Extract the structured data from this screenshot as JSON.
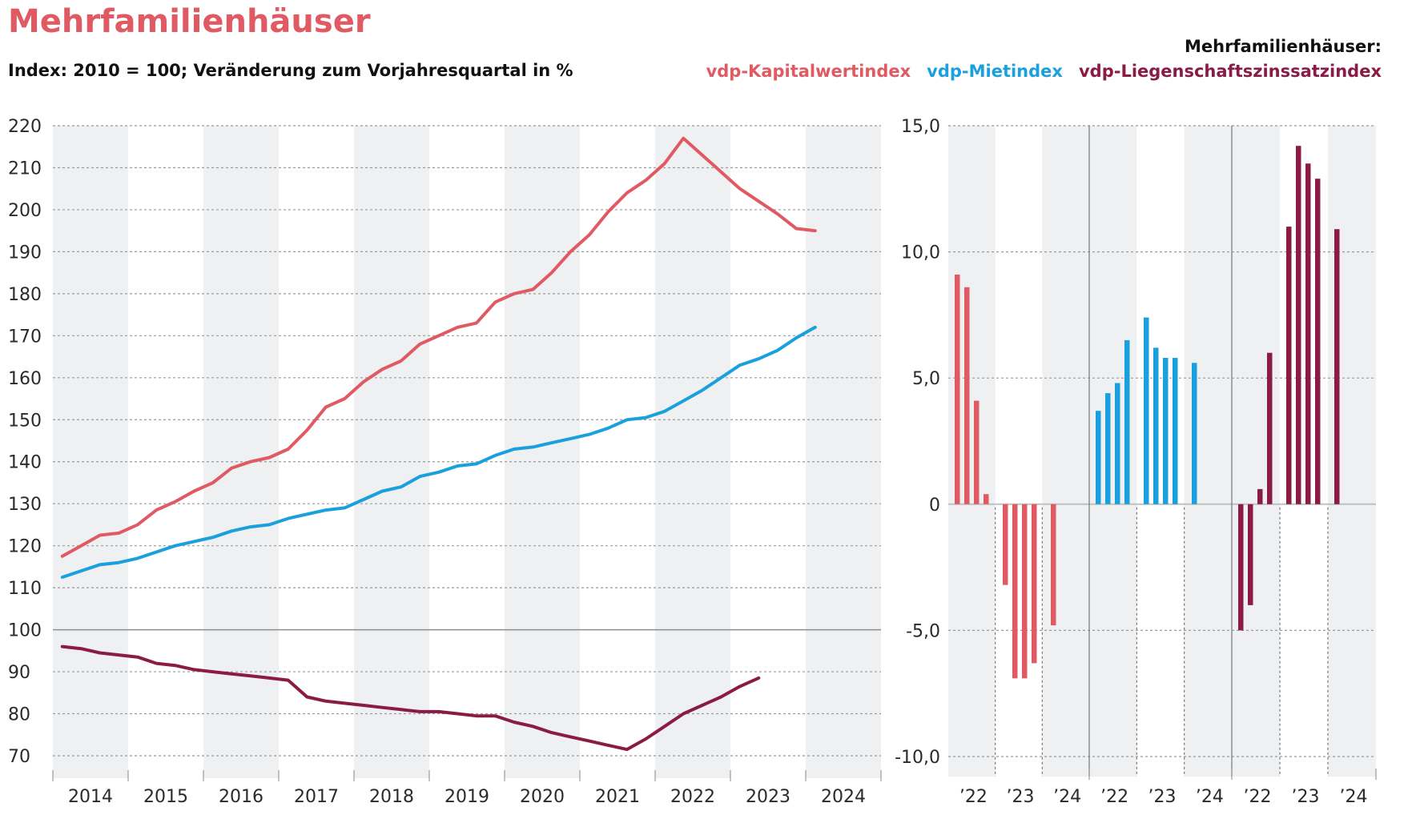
{
  "header": {
    "title": "Mehrfamilienhäuser",
    "subtitle": "Index: 2010 = 100; Veränderung zum Vorjahresquartal in %"
  },
  "legend": {
    "heading": "Mehrfamilienhäuser:",
    "items": [
      {
        "label": "vdp-Kapitalwertindex",
        "color": "#e05a63"
      },
      {
        "label": "vdp-Mietindex",
        "color": "#1aa0dc"
      },
      {
        "label": "vdp-Liegenschaftszinssatzindex",
        "color": "#8a1b45"
      }
    ]
  },
  "colors": {
    "title": "#e05a63",
    "band": "#eef0f2",
    "grid": "#9a9a9a"
  },
  "chart_data": [
    {
      "type": "line",
      "title": "Index: 2010 = 100",
      "x_labels": [
        "2014",
        "2015",
        "2016",
        "2017",
        "2018",
        "2019",
        "2020",
        "2021",
        "2022",
        "2023",
        "2024"
      ],
      "ylim": [
        70,
        220
      ],
      "yticks": [
        220,
        210,
        200,
        190,
        180,
        170,
        160,
        150,
        140,
        130,
        120,
        110,
        100,
        90,
        80,
        70
      ],
      "quarters_per_year": 4,
      "series": [
        {
          "name": "vdp-Kapitalwertindex",
          "color": "#e05a63",
          "values": [
            117.5,
            120,
            122.5,
            123,
            125,
            128.5,
            130.5,
            133,
            135,
            138.5,
            140,
            141,
            143,
            147.5,
            153,
            155,
            159,
            162,
            164,
            168,
            170,
            172,
            173,
            178,
            180,
            181,
            185,
            190,
            194,
            199.5,
            204,
            207,
            211,
            217,
            213,
            209,
            205,
            202,
            199,
            195.5,
            195
          ]
        },
        {
          "name": "vdp-Mietindex",
          "color": "#1aa0dc",
          "values": [
            112.5,
            114,
            115.5,
            116,
            117,
            118.5,
            120,
            121,
            122,
            123.5,
            124.5,
            125,
            126.5,
            127.5,
            128.5,
            129,
            131,
            133,
            134,
            136.5,
            137.5,
            139,
            139.5,
            141.5,
            143,
            143.5,
            144.5,
            145.5,
            146.5,
            148,
            150,
            150.5,
            152,
            154.5,
            157,
            160,
            163,
            164.5,
            166.5,
            169.5,
            172
          ]
        },
        {
          "name": "vdp-Liegenschaftszinssatzindex",
          "color": "#8a1b45",
          "values": [
            96,
            95.5,
            94.5,
            94,
            93.5,
            92,
            91.5,
            90.5,
            90,
            89.5,
            89,
            88.5,
            88,
            84,
            83,
            82.5,
            82,
            81.5,
            81,
            80.5,
            80.5,
            80,
            79.5,
            79.5,
            78,
            77,
            75.5,
            74.5,
            73.5,
            72.5,
            71.5,
            74,
            77,
            80,
            82,
            84,
            86.5,
            88.5
          ]
        }
      ]
    },
    {
      "type": "bar",
      "title": "Veränderung zum Vorjahresquartal in %",
      "ylim": [
        -10,
        15
      ],
      "yticks": [
        "15,0",
        "10,0",
        "5,0",
        "0",
        "-5,0",
        "-10,0"
      ],
      "ytick_values": [
        15,
        10,
        5,
        0,
        -5,
        -10
      ],
      "x_labels": [
        "’22",
        "’23",
        "’24",
        "’22",
        "’23",
        "’24",
        "’22",
        "’23",
        "’24"
      ],
      "series": [
        {
          "name": "vdp-Kapitalwertindex",
          "color": "#e05a63",
          "values": [
            9.1,
            8.6,
            4.1,
            0.4,
            null,
            -3.2,
            -6.9,
            -6.9,
            -6.3,
            null,
            -4.8
          ]
        },
        {
          "name": "vdp-Mietindex",
          "color": "#1aa0dc",
          "values": [
            3.7,
            4.4,
            4.8,
            6.5,
            null,
            7.4,
            6.2,
            5.8,
            5.8,
            null,
            5.6
          ]
        },
        {
          "name": "vdp-Liegenschaftszinssatzindex",
          "color": "#8a1b45",
          "values": [
            -5.0,
            -4.0,
            0.6,
            6.0,
            null,
            11.0,
            14.2,
            13.5,
            12.9,
            null,
            10.9
          ]
        }
      ]
    }
  ]
}
